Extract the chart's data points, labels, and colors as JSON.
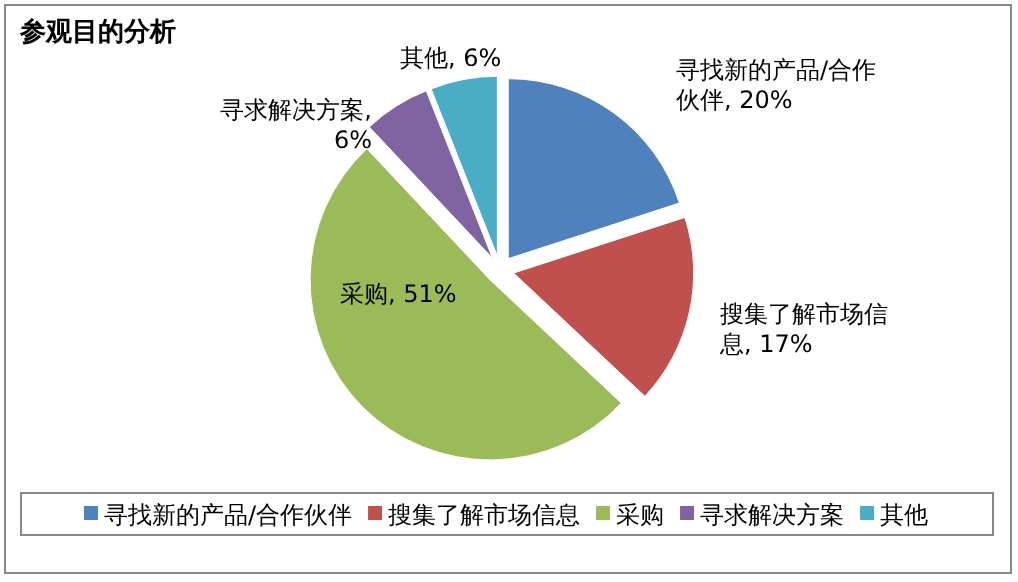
{
  "chart_data": {
    "type": "pie",
    "title": "参观目的分析",
    "categories": [
      "寻找新的产品/合作伙伴",
      "搜集了解市场信息",
      "采购",
      "寻求解决方案",
      "其他"
    ],
    "values": [
      20,
      17,
      51,
      6,
      6
    ],
    "colors": [
      "#4f81bd",
      "#c0504d",
      "#9bbb59",
      "#8064a2",
      "#4bacc6"
    ],
    "value_labels": [
      "寻找新的产品/合作伙伴, 20%",
      "搜集了解市场信息, 17%",
      "采购, 51%",
      "寻求解决方案, 6%",
      "其他, 6%"
    ],
    "legend": "bottom"
  }
}
